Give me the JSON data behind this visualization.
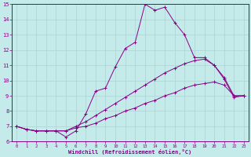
{
  "xlabel": "Windchill (Refroidissement éolien,°C)",
  "background_color": "#c5eaea",
  "grid_color": "#aad4d4",
  "line_color": "#880088",
  "xlim": [
    -0.5,
    23.5
  ],
  "ylim": [
    6,
    15
  ],
  "xticks": [
    0,
    1,
    2,
    3,
    4,
    5,
    6,
    7,
    8,
    9,
    10,
    11,
    12,
    13,
    14,
    15,
    16,
    17,
    18,
    19,
    20,
    21,
    22,
    23
  ],
  "yticks": [
    6,
    7,
    8,
    9,
    10,
    11,
    12,
    13,
    14,
    15
  ],
  "line1_x": [
    0,
    1,
    2,
    3,
    4,
    5,
    6,
    7,
    8,
    9,
    10,
    11,
    12,
    13,
    14,
    15,
    16,
    17,
    18,
    19,
    20,
    21,
    22,
    23
  ],
  "line1_y": [
    7.0,
    6.8,
    6.7,
    6.7,
    6.7,
    6.3,
    6.7,
    7.8,
    9.3,
    9.5,
    10.9,
    12.1,
    12.5,
    15.0,
    14.6,
    14.8,
    13.8,
    13.0,
    11.5,
    11.5,
    11.0,
    10.1,
    8.9,
    9.0
  ],
  "line2_x": [
    0,
    1,
    2,
    3,
    4,
    5,
    6,
    7,
    8,
    9,
    10,
    11,
    12,
    13,
    14,
    15,
    16,
    17,
    18,
    19,
    20,
    21,
    22,
    23
  ],
  "line2_y": [
    7.0,
    6.8,
    6.7,
    6.7,
    6.7,
    6.7,
    7.0,
    7.3,
    7.7,
    8.1,
    8.5,
    8.9,
    9.3,
    9.7,
    10.1,
    10.5,
    10.8,
    11.1,
    11.3,
    11.4,
    11.0,
    10.2,
    9.0,
    9.0
  ],
  "line3_x": [
    0,
    1,
    2,
    3,
    4,
    5,
    6,
    7,
    8,
    9,
    10,
    11,
    12,
    13,
    14,
    15,
    16,
    17,
    18,
    19,
    20,
    21,
    22,
    23
  ],
  "line3_y": [
    7.0,
    6.8,
    6.7,
    6.7,
    6.7,
    6.7,
    6.9,
    7.0,
    7.2,
    7.5,
    7.7,
    8.0,
    8.2,
    8.5,
    8.7,
    9.0,
    9.2,
    9.5,
    9.7,
    9.8,
    9.9,
    9.7,
    9.0,
    9.0
  ]
}
